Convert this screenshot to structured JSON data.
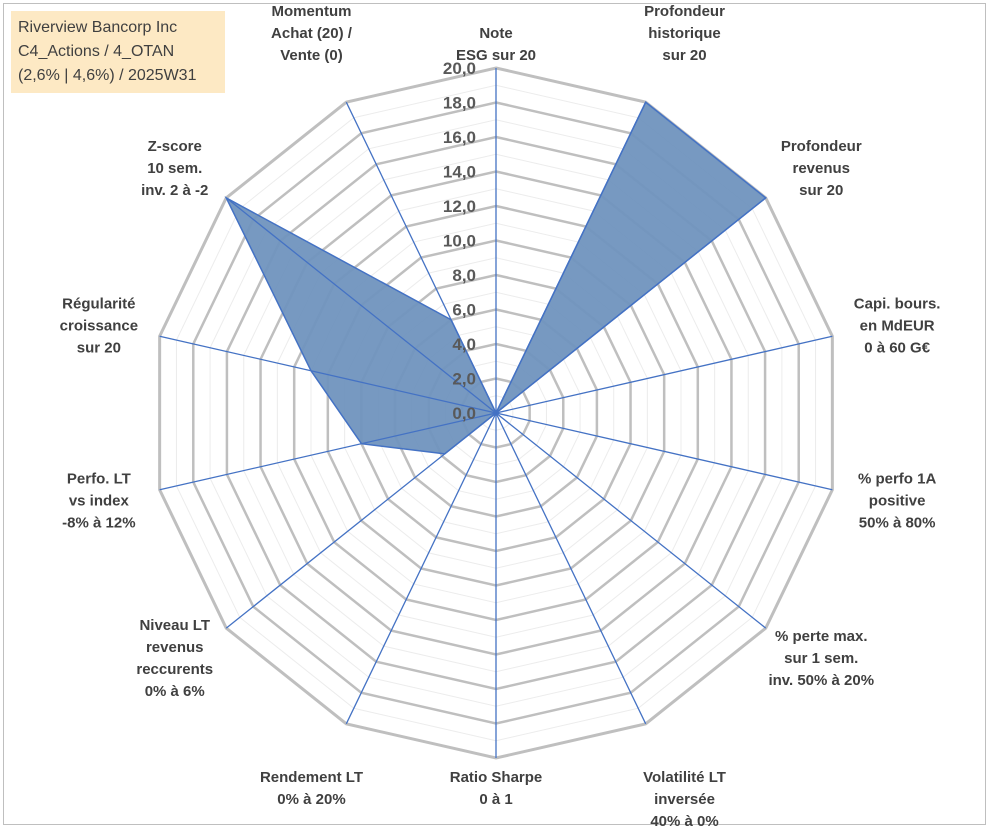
{
  "title_box": {
    "line1": "Riverview Bancorp Inc",
    "line2": "C4_Actions / 4_OTAN",
    "line3": "(2,6% | 4,6%) / 2025W31"
  },
  "chart_data": {
    "type": "radar",
    "rlim": [
      0,
      20
    ],
    "ticks": [
      "0,0",
      "2,0",
      "4,0",
      "6,0",
      "8,0",
      "10,0",
      "12,0",
      "14,0",
      "16,0",
      "18,0",
      "20,0"
    ],
    "grid": true,
    "axes": [
      {
        "label": [
          "Note",
          "ESG sur 20"
        ],
        "value": 0
      },
      {
        "label": [
          "Profondeur",
          "historique",
          "sur 20"
        ],
        "value": 20
      },
      {
        "label": [
          "Profondeur",
          "revenus",
          "sur 20"
        ],
        "value": 20
      },
      {
        "label": [
          "Capi. bours.",
          "en MdEUR",
          "0 à 60 G€"
        ],
        "value": 0
      },
      {
        "label": [
          "% perfo 1A",
          "positive",
          "50% à 80%"
        ],
        "value": 0
      },
      {
        "label": [
          "% perte max.",
          "sur 1 sem.",
          "inv. 50% à 20%"
        ],
        "value": 0
      },
      {
        "label": [
          "Volatilité LT",
          "inversée",
          "40% à 0%"
        ],
        "value": 0
      },
      {
        "label": [
          "Ratio Sharpe",
          "0 à 1"
        ],
        "value": 0
      },
      {
        "label": [
          "Rendement LT",
          "0% à 20%"
        ],
        "value": 0
      },
      {
        "label": [
          "Niveau LT",
          "revenus",
          "reccurents",
          "0% à 6%"
        ],
        "value": 3.8
      },
      {
        "label": [
          "Perfo. LT",
          "vs index",
          "-8% à 12%"
        ],
        "value": 8.0
      },
      {
        "label": [
          "Régularité",
          "croissance",
          "sur 20"
        ],
        "value": 11.0
      },
      {
        "label": [
          "Z-score",
          "10 sem.",
          "inv. 2 à -2"
        ],
        "value": 20
      },
      {
        "label": [
          "Momentum",
          "Achat (20) /",
          "Vente (0)"
        ],
        "value": 6.0
      }
    ],
    "colors": {
      "fill": "#7094be",
      "stroke": "#4472c4",
      "grid": "#bfbfbf",
      "spoke": "#4472c4"
    }
  }
}
